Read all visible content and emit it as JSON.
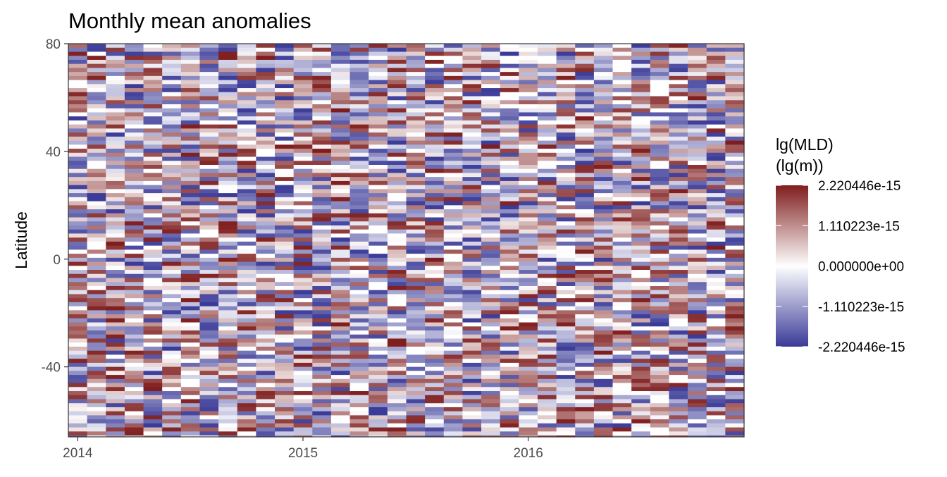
{
  "chart_data": {
    "type": "heatmap",
    "title": "Monthly mean anomalies",
    "xlabel": "",
    "ylabel": "Latitude",
    "x_start": "2014-01",
    "x_end": "2016-12",
    "x_ticks": [
      {
        "label": "2014",
        "value": "2014-01"
      },
      {
        "label": "2015",
        "value": "2015-01"
      },
      {
        "label": "2016",
        "value": "2016-01"
      }
    ],
    "ylim": [
      -66,
      80
    ],
    "y_ticks": [
      {
        "label": "80",
        "value": 80
      },
      {
        "label": "40",
        "value": 40
      },
      {
        "label": "0",
        "value": 0
      },
      {
        "label": "-40",
        "value": -40
      }
    ],
    "lat_step": 1.5,
    "grid": false,
    "legend": {
      "position": "right",
      "title_line1": "lg(MLD)",
      "title_line2": "(lg(m))",
      "min": -2.220446e-15,
      "max": 2.220446e-15,
      "ticks": [
        {
          "label": "2.220446e-15",
          "value": 2.220446e-15
        },
        {
          "label": "1.110223e-15",
          "value": 1.110223e-15
        },
        {
          "label": "0.000000e+00",
          "value": 0
        },
        {
          "label": "-1.110223e-15",
          "value": -1.110223e-15
        },
        {
          "label": "-2.220446e-15",
          "value": -2.220446e-15
        }
      ]
    },
    "colors": {
      "low": "#3a3a98",
      "mid": "#ffffff",
      "high": "#7f1d1d",
      "panel_border": "#333333",
      "text": "#000000",
      "tick_text": "#4d4d4d"
    }
  }
}
